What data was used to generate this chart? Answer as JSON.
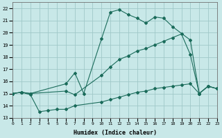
{
  "xlabel": "Humidex (Indice chaleur)",
  "xlim": [
    0,
    23
  ],
  "ylim": [
    13,
    22.5
  ],
  "xticks": [
    0,
    1,
    2,
    3,
    4,
    5,
    6,
    7,
    8,
    9,
    10,
    11,
    12,
    13,
    14,
    15,
    16,
    17,
    18,
    19,
    20,
    21,
    22,
    23
  ],
  "yticks": [
    13,
    14,
    15,
    16,
    17,
    18,
    19,
    20,
    21,
    22
  ],
  "bg_color": "#c8e8e8",
  "grid_color": "#a0c8c8",
  "line_color": "#1a6b5a",
  "line1_x": [
    0,
    1,
    2,
    6,
    7,
    8,
    10,
    11,
    12,
    13,
    14,
    15,
    16,
    17,
    18,
    20,
    21,
    22,
    23
  ],
  "line1_y": [
    15.0,
    15.1,
    15.0,
    15.8,
    16.7,
    15.0,
    19.5,
    21.7,
    21.9,
    21.5,
    21.2,
    20.8,
    21.3,
    21.2,
    20.5,
    19.4,
    15.0,
    15.6,
    15.4
  ],
  "line2_x": [
    0,
    1,
    2,
    6,
    7,
    10,
    11,
    12,
    13,
    14,
    15,
    16,
    17,
    18,
    19,
    20,
    21,
    22,
    23
  ],
  "line2_y": [
    15.0,
    15.1,
    15.0,
    15.2,
    14.9,
    16.5,
    17.2,
    17.8,
    18.1,
    18.5,
    18.7,
    19.0,
    19.3,
    19.6,
    19.9,
    18.2,
    15.0,
    15.6,
    15.4
  ],
  "line3_x": [
    0,
    1,
    2,
    3,
    4,
    5,
    6,
    7,
    10,
    11,
    12,
    13,
    14,
    15,
    16,
    17,
    18,
    19,
    20,
    21,
    22,
    23
  ],
  "line3_y": [
    15.0,
    15.1,
    14.9,
    13.5,
    13.6,
    13.7,
    13.7,
    14.0,
    14.3,
    14.5,
    14.7,
    14.9,
    15.1,
    15.2,
    15.4,
    15.5,
    15.6,
    15.7,
    15.8,
    15.0,
    15.6,
    15.4
  ]
}
